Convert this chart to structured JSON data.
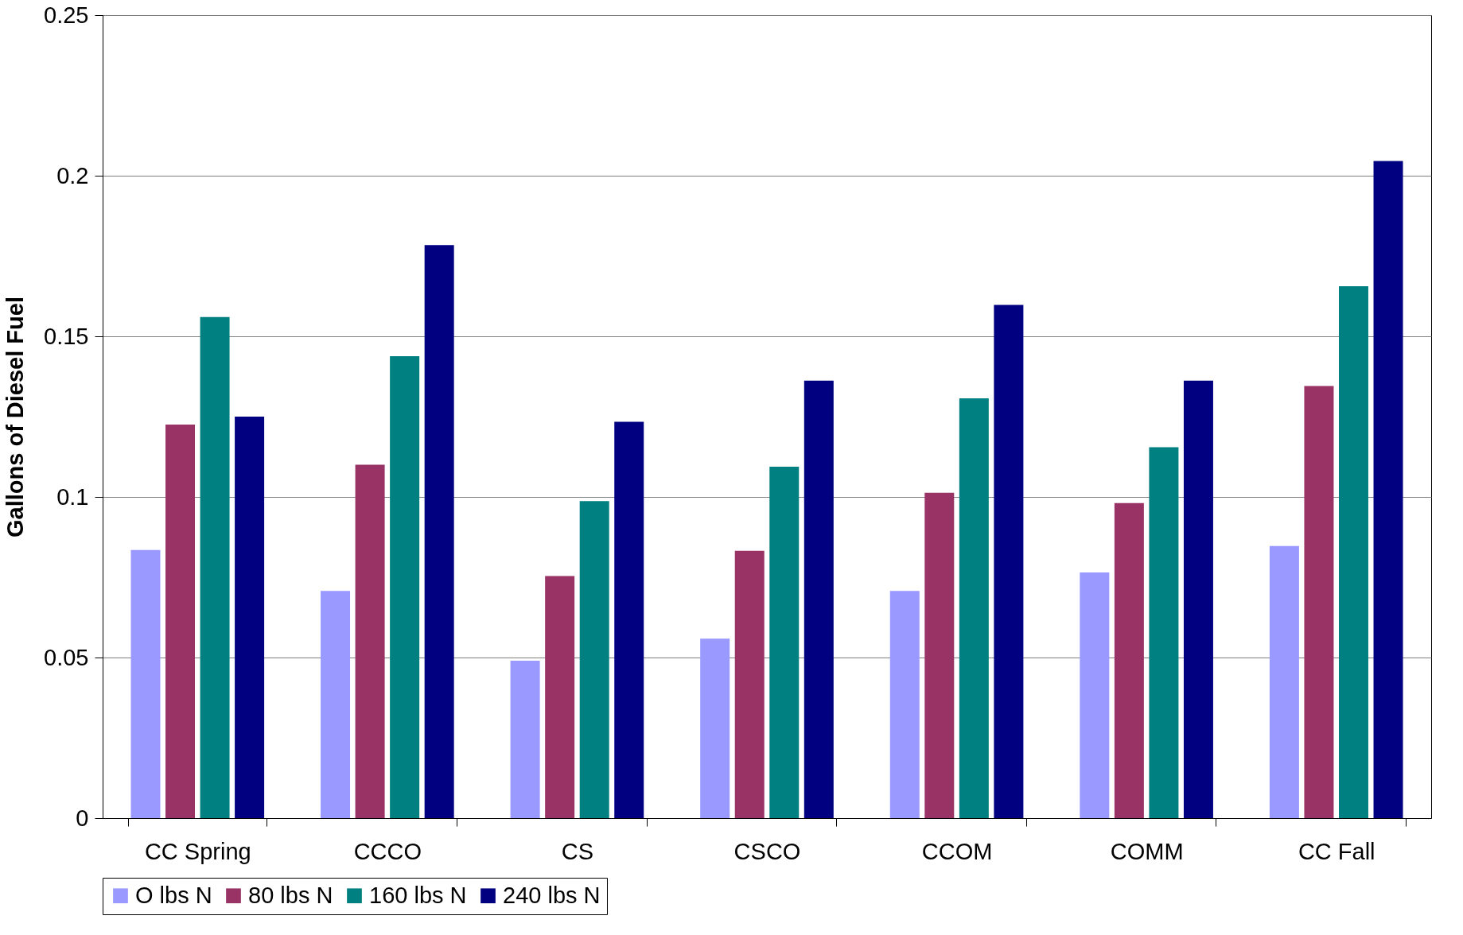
{
  "chart_data": {
    "type": "bar",
    "ylabel": "Gallons of Diesel Fuel",
    "categories": [
      "CC Spring",
      "CCCO",
      "CS",
      "CSCO",
      "CCOM",
      "COMM",
      "CC Fall"
    ],
    "series": [
      {
        "name": "O lbs N",
        "color": "#9999ff",
        "values": [
          0.0835,
          0.0707,
          0.049,
          0.0559,
          0.0707,
          0.0765,
          0.0847
        ]
      },
      {
        "name": "80 lbs N",
        "color": "#993366",
        "values": [
          0.1225,
          0.11,
          0.0754,
          0.0832,
          0.1013,
          0.0981,
          0.1345
        ]
      },
      {
        "name": "160 lbs N",
        "color": "#008080",
        "values": [
          0.156,
          0.1438,
          0.0987,
          0.1094,
          0.1307,
          0.1155,
          0.1656
        ]
      },
      {
        "name": "240 lbs N",
        "color": "#000080",
        "values": [
          0.125,
          0.1784,
          0.1234,
          0.1362,
          0.1598,
          0.1362,
          0.2046
        ]
      }
    ],
    "ylim": [
      0,
      0.25
    ],
    "yticks": [
      0,
      0.05,
      0.1,
      0.15,
      0.2,
      0.25
    ],
    "grid": "y",
    "legend": "bottom"
  }
}
